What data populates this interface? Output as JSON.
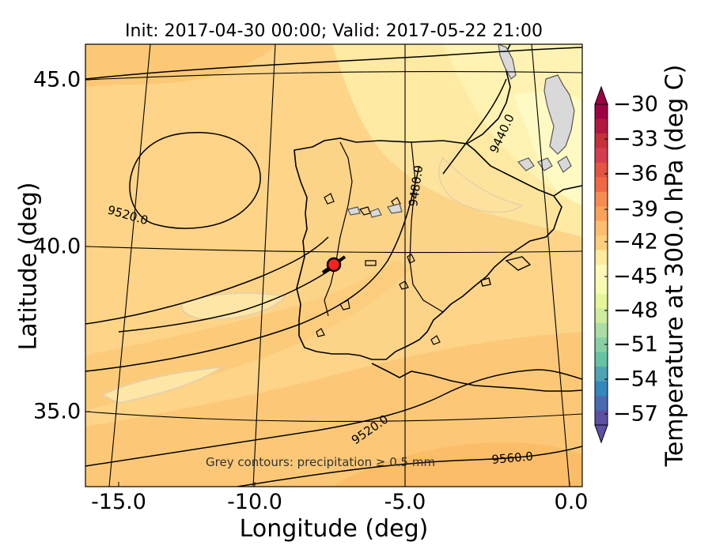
{
  "title": "Init: 2017-04-30 00:00; Valid: 2017-05-22 21:00",
  "x_axis": {
    "label": "Longitude (deg)",
    "ticks": [
      "-15.0",
      "-10.0",
      "-5.0",
      "0.0"
    ]
  },
  "y_axis": {
    "label": "Latitude (deg)",
    "ticks": [
      "45.0",
      "40.0",
      "35.0"
    ]
  },
  "colorbar": {
    "label": "Temperature at 300.0 hPa (deg C)",
    "ticks": [
      "−30",
      "−33",
      "−36",
      "−39",
      "−42",
      "−45",
      "−48",
      "−51",
      "−54",
      "−57"
    ],
    "colors": [
      "#9e0142",
      "#b2173f",
      "#c5303b",
      "#d43d4f",
      "#e35442",
      "#f06744",
      "#f88b51",
      "#fba25a",
      "#fdbf6f",
      "#fdd07d",
      "#feeb9d",
      "#fff8b8",
      "#f6fbb1",
      "#e6f598",
      "#cfec9d",
      "#abdda4",
      "#88cfa4",
      "#66c2a5",
      "#4ea3b4",
      "#3288bd",
      "#4a6bb0",
      "#5e4fa2"
    ]
  },
  "note": "Grey contours: precipitation ≥ 0.5 mm",
  "contour_labels": [
    "9520.0",
    "9480.0",
    "9440.0",
    "9520.0",
    "9560.0"
  ],
  "marker": {
    "lon": -7.7,
    "lat": 39.3,
    "color": "#ff2020"
  },
  "chart_data": {
    "type": "map",
    "variable": "Temperature at 300.0 hPa",
    "units": "deg C",
    "lon_range": [
      -16,
      0.2
    ],
    "lat_range": [
      32.8,
      46.2
    ],
    "geopotential_contours": [
      9440,
      9480,
      9520,
      9560
    ],
    "colorbar_range": [
      -57,
      -30
    ],
    "colorbar_step": 3
  }
}
